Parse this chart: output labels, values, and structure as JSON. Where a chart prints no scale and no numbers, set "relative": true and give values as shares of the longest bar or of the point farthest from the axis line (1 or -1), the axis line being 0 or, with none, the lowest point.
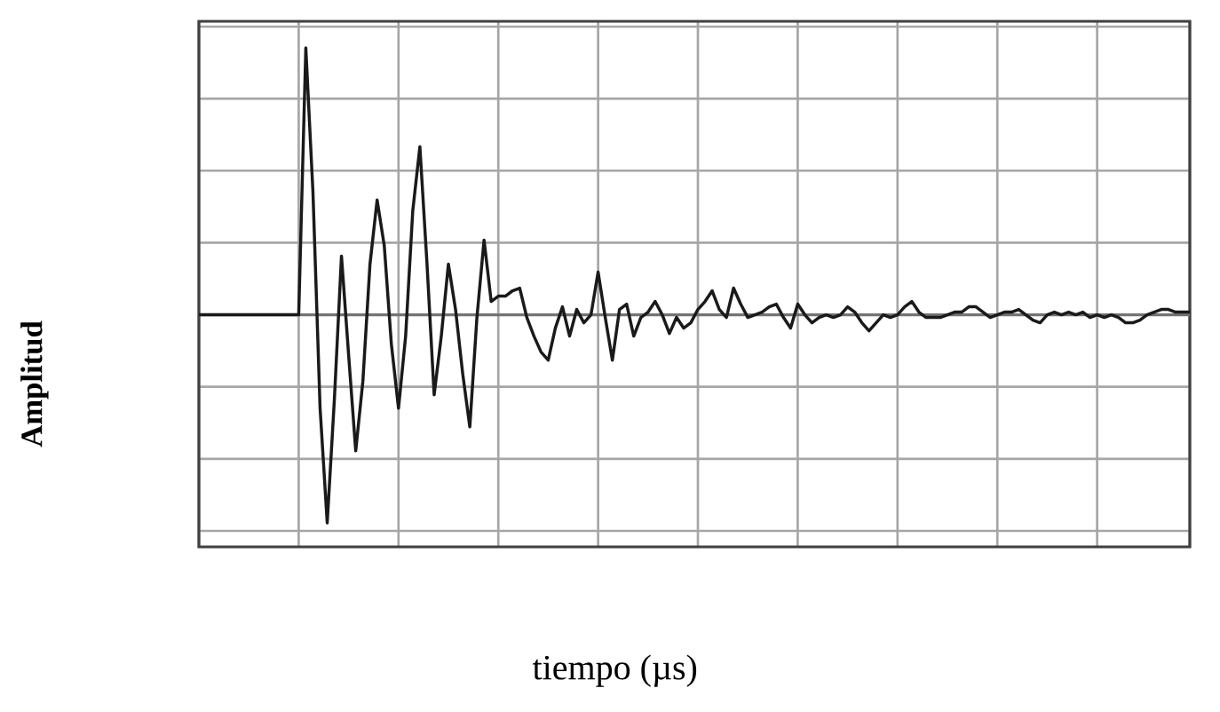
{
  "chart_data": {
    "type": "line",
    "relative": true,
    "xlabel": "tiempo (µs)",
    "ylabel": "Amplitud",
    "grid": true,
    "tick_labels": false,
    "marker": "none",
    "line_style": "solid",
    "categories": [
      null,
      null,
      null,
      null,
      null,
      null,
      null,
      null,
      null,
      null,
      null,
      null,
      null,
      null,
      null,
      null,
      null,
      null,
      null,
      null,
      null,
      null,
      null,
      null,
      null,
      null,
      null,
      null,
      null,
      null,
      null,
      null,
      null,
      null,
      null,
      null,
      null,
      null,
      null,
      null,
      null,
      null,
      null,
      null,
      null,
      null,
      null,
      null,
      null,
      null,
      null,
      null,
      null,
      null,
      null,
      null,
      null,
      null,
      null,
      null,
      null,
      null,
      null,
      null,
      null,
      null,
      null,
      null,
      null,
      null,
      null,
      null,
      null,
      null,
      null,
      null,
      null,
      null,
      null,
      null,
      null,
      null,
      null,
      null,
      null,
      null,
      null,
      null,
      null,
      null,
      null,
      null,
      null,
      null,
      null,
      null,
      null,
      null,
      null,
      null,
      null,
      null,
      null,
      null,
      null,
      null,
      null,
      null,
      null,
      null,
      null,
      null,
      null,
      null,
      null,
      null,
      null,
      null,
      null,
      null,
      null,
      null,
      null,
      null,
      null,
      null,
      null,
      null,
      null,
      null,
      null,
      null,
      null,
      null,
      null,
      null,
      null,
      null,
      null,
      null
    ],
    "series": [
      {
        "color": "#1a1a1a",
        "values": [
          0,
          0,
          0,
          0,
          0,
          0,
          0,
          0,
          0,
          0,
          0,
          0,
          0,
          0,
          0,
          1.0,
          0.46,
          -0.35,
          -0.78,
          -0.32,
          0.22,
          -0.15,
          -0.51,
          -0.25,
          0.19,
          0.43,
          0.26,
          -0.11,
          -0.35,
          -0.08,
          0.39,
          0.63,
          0.19,
          -0.3,
          -0.08,
          0.19,
          0.02,
          -0.22,
          -0.42,
          -0.01,
          0.28,
          0.05,
          0.07,
          0.07,
          0.09,
          0.1,
          -0.01,
          -0.08,
          -0.14,
          -0.17,
          -0.05,
          0.03,
          -0.08,
          0.02,
          -0.03,
          0,
          0.16,
          -0.01,
          -0.17,
          0.02,
          0.04,
          -0.08,
          -0.01,
          0.01,
          0.05,
          0,
          -0.07,
          -0.01,
          -0.05,
          -0.03,
          0.02,
          0.05,
          0.09,
          0.02,
          -0.01,
          0.1,
          0.04,
          -0.01,
          0,
          0.01,
          0.03,
          0.04,
          -0.01,
          -0.05,
          0.04,
          0,
          -0.03,
          -0.01,
          0,
          -0.01,
          0,
          0.03,
          0.01,
          -0.03,
          -0.06,
          -0.03,
          0,
          -0.01,
          0,
          0.03,
          0.05,
          0.01,
          -0.01,
          -0.01,
          -0.01,
          0,
          0.01,
          0.01,
          0.03,
          0.03,
          0.01,
          -0.01,
          0,
          0.01,
          0.01,
          0.02,
          0,
          -0.02,
          -0.03,
          0,
          0.01,
          0,
          0.01,
          0,
          0.01,
          -0.01,
          0,
          -0.01,
          0,
          -0.01,
          -0.03,
          -0.03,
          -0.02,
          0,
          0.01,
          0.02,
          0.02,
          0.01,
          0.01,
          0.01
        ]
      }
    ]
  }
}
